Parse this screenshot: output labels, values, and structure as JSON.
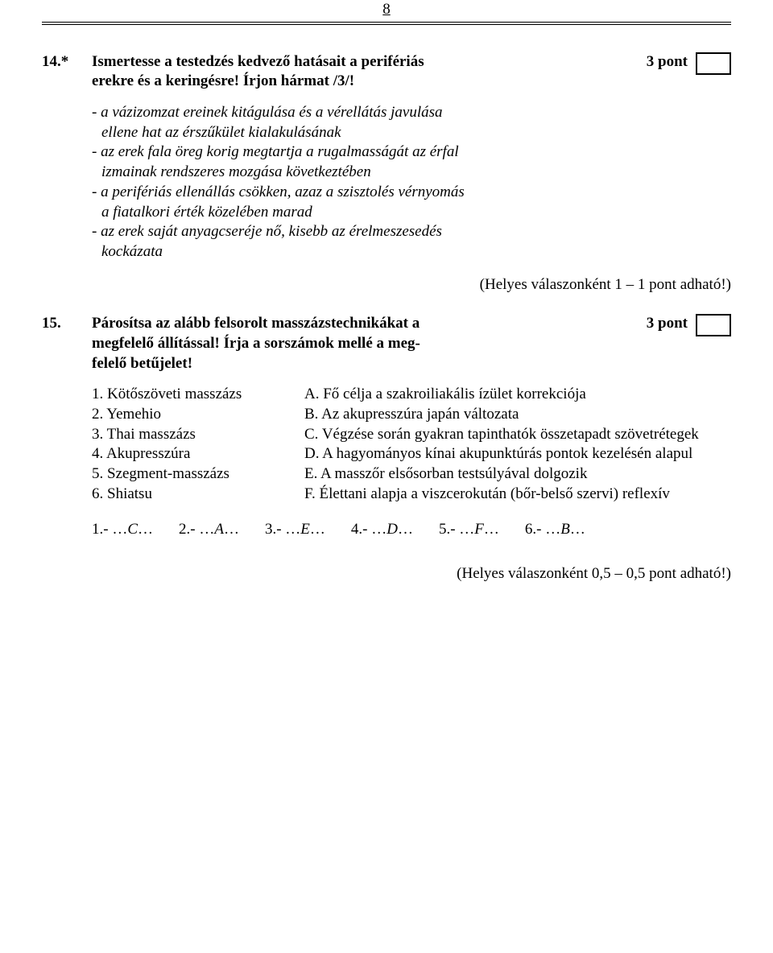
{
  "page_number": "8",
  "q14": {
    "number": "14.*",
    "title_line1": "Ismertesse a testedzés kedvező hatásait a perifériás",
    "title_line2": "erekre és a keringésre! Írjon hármat /3/!",
    "points": "3 pont",
    "answers": {
      "a1": "- a vázizomzat ereinek kitágulása és a vérellátás javulása",
      "a2": "ellene hat az érszűkület kialakulásának",
      "a3": "- az erek fala öreg korig megtartja a rugalmasságát az érfal",
      "a4": "izmainak rendszeres mozgása következtében",
      "a5": "- a perifériás ellenállás csökken, azaz a szisztolés vérnyomás",
      "a6": "a fiatalkori érték közelében marad",
      "a7": "- az erek saját anyagcseréje nő, kisebb az érelmeszesedés",
      "a8": "kockázata"
    },
    "scoring": "(Helyes válaszonként 1 – 1 pont adható!)"
  },
  "q15": {
    "number": "15.",
    "title_line1": "Párosítsa az alább felsorolt masszázstechnikákat a",
    "title_line2": "megfelelő állítással! Írja a sorszámok mellé a meg-",
    "title_line3": "felelő betűjelet!",
    "points": "3 pont",
    "left": {
      "l1": "1. Kötőszöveti masszázs",
      "l2": "2. Yemehio",
      "l3": "3. Thai masszázs",
      "l4": "4. Akupresszúra",
      "l5": "5. Szegment-masszázs",
      "l6": "6. Shiatsu"
    },
    "right": {
      "rA": "A. Fő célja a szakroiliakális ízület korrekciója",
      "rB": "B. Az akupresszúra japán változata",
      "rC": "C. Végzése során gyakran tapinthatók összetapadt szövetrétegek",
      "rD": "D. A hagyományos kínai akupunktúrás pontok kezelésén alapul",
      "rE": "E. A masszőr elsősorban testsúlyával dolgozik",
      "rF": "F. Élettani alapja a viszcerokután (bőr-belső szervi) reflexív"
    },
    "answers": {
      "a1": "1.- …C…",
      "a2": "2.- …A…",
      "a3": "3.- …E…",
      "a4": "4.- …D…",
      "a5": "5.- …F…",
      "a6": "6.- …B…"
    },
    "scoring": "(Helyes válaszonként 0,5 – 0,5 pont adható!)"
  }
}
